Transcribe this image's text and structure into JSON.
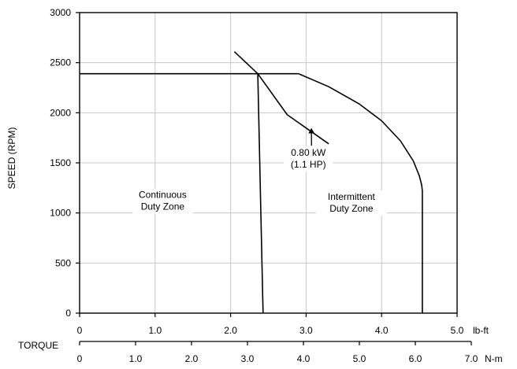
{
  "chart_data": {
    "type": "line",
    "ylabel": "SPEED (RPM)",
    "xlabel": "TORQUE",
    "x_unit_primary": "lb-ft",
    "x_unit_secondary": "N-m",
    "xlim": [
      0,
      5.0
    ],
    "ylim": [
      0,
      3000
    ],
    "x_ticks": [
      {
        "value": 0,
        "label": "0"
      },
      {
        "value": 1.0,
        "label": "1.0"
      },
      {
        "value": 2.0,
        "label": "2.0"
      },
      {
        "value": 3.0,
        "label": "3.0"
      },
      {
        "value": 4.0,
        "label": "4.0"
      },
      {
        "value": 5.0,
        "label": "5.0"
      }
    ],
    "x2lim": [
      0,
      7.0
    ],
    "x2_ticks": [
      {
        "value": 0,
        "label": "0"
      },
      {
        "value": 1.0,
        "label": "1.0"
      },
      {
        "value": 2.0,
        "label": "2.0"
      },
      {
        "value": 3.0,
        "label": "3.0"
      },
      {
        "value": 4.0,
        "label": "4.0"
      },
      {
        "value": 5.0,
        "label": "5.0"
      },
      {
        "value": 6.0,
        "label": "6.0"
      },
      {
        "value": 7.0,
        "label": "7.0"
      }
    ],
    "y_ticks": [
      {
        "value": 0,
        "label": "0"
      },
      {
        "value": 500,
        "label": "500"
      },
      {
        "value": 1000,
        "label": "1000"
      },
      {
        "value": 1500,
        "label": "1500"
      },
      {
        "value": 2000,
        "label": "2000"
      },
      {
        "value": 2500,
        "label": "2500"
      },
      {
        "value": 3000,
        "label": "3000"
      }
    ],
    "grid": true,
    "series": [
      {
        "key": "intermittent-boundary",
        "x": [
          0,
          2.9,
          3.3,
          3.7,
          4.0,
          4.25,
          4.42,
          4.5,
          4.53,
          4.54,
          4.54
        ],
        "y": [
          2390,
          2390,
          2260,
          2090,
          1920,
          1720,
          1520,
          1370,
          1280,
          1220,
          0
        ]
      },
      {
        "key": "continuous-boundary",
        "x": [
          2.36,
          2.43
        ],
        "y": [
          2390,
          0
        ]
      },
      {
        "key": "power-curve",
        "x": [
          2.05,
          2.36,
          2.75,
          3.3
        ],
        "y": [
          2610,
          2390,
          1980,
          1690
        ]
      }
    ],
    "annotations": [
      {
        "key": "power-label",
        "lines": [
          "0.80 kW",
          "(1.1 HP)"
        ],
        "x": 3.03,
        "y": 1460,
        "arrow_to": [
          3.07,
          1840
        ]
      },
      {
        "key": "continuous-zone",
        "lines": [
          "Continuous",
          "Duty Zone"
        ],
        "x": 1.1,
        "y": 1040
      },
      {
        "key": "intermittent-zone",
        "lines": [
          "Intermittent",
          "Duty Zone"
        ],
        "x": 3.6,
        "y": 1020
      }
    ]
  }
}
